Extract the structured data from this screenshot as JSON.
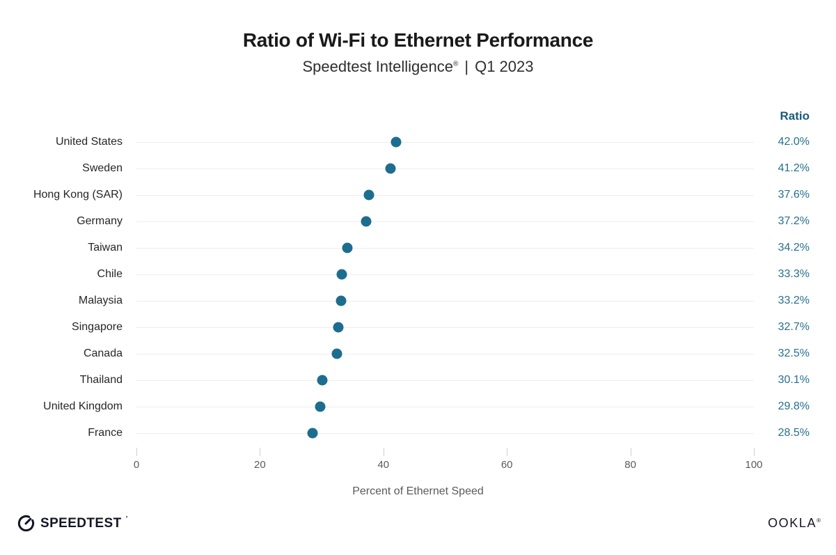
{
  "header": {
    "title": "Ratio of Wi-Fi to Ethernet Performance",
    "subtitle_brand": "Speedtest Intelligence",
    "subtitle_registered_mark": "®",
    "subtitle_separator": "|",
    "subtitle_period": "Q1 2023"
  },
  "chart_data": {
    "type": "scatter",
    "title": "Ratio of Wi-Fi to Ethernet Performance",
    "subtitle": "Speedtest Intelligence® | Q1 2023",
    "categories": [
      "United States",
      "Sweden",
      "Hong Kong (SAR)",
      "Germany",
      "Taiwan",
      "Chile",
      "Malaysia",
      "Singapore",
      "Canada",
      "Thailand",
      "United Kingdom",
      "France"
    ],
    "values": [
      42.0,
      41.2,
      37.6,
      37.2,
      34.2,
      33.3,
      33.2,
      32.7,
      32.5,
      30.1,
      29.8,
      28.5
    ],
    "value_labels": [
      "42.0%",
      "41.2%",
      "37.6%",
      "37.2%",
      "34.2%",
      "33.3%",
      "33.2%",
      "32.7%",
      "32.5%",
      "30.1%",
      "29.8%",
      "28.5%"
    ],
    "value_column_header": "Ratio",
    "xlabel": "Percent of Ethernet Speed",
    "xlim": [
      0,
      100
    ],
    "xticks": [
      0,
      20,
      40,
      60,
      80,
      100
    ],
    "grid": "horizontal-row-lines",
    "legend": "none",
    "dot_color": "#1d6d8f",
    "value_text_color": "#26708e",
    "gridline_color": "#ededed"
  },
  "footer": {
    "speedtest_wordmark": "SPEEDTEST",
    "speedtest_trademark_tick": "’",
    "ookla_wordmark": "OOKLA",
    "ookla_registered_mark": "®"
  }
}
